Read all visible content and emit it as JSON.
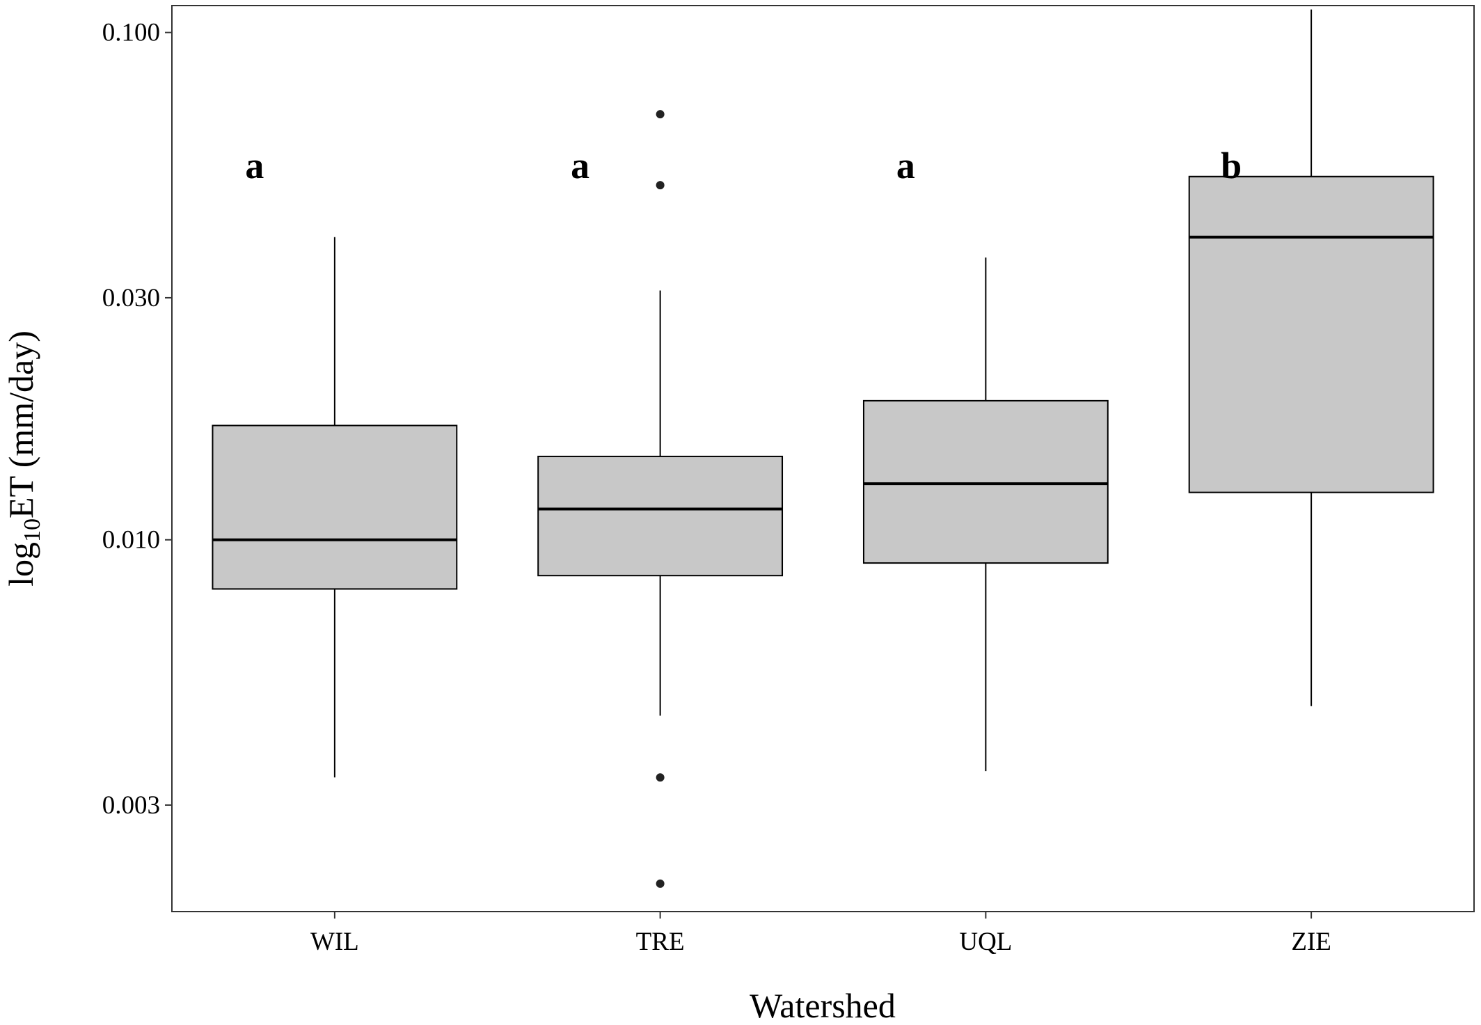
{
  "chart_data": {
    "type": "box",
    "title": "",
    "xlabel": "Watershed",
    "ylabel_parts": {
      "prefix": "log",
      "subscript": "10",
      "suffix": "ET (mm/day)"
    },
    "y_scale": "log10",
    "ylim": [
      0.00185,
      0.113
    ],
    "y_ticks": [
      0.003,
      0.01,
      0.03,
      0.1
    ],
    "y_tick_labels": [
      "0.003",
      "0.010",
      "0.030",
      "0.100"
    ],
    "grid": false,
    "legend": "none",
    "box_fill": "#c8c8c8",
    "line_color": "#000000",
    "categories": [
      "WIL",
      "TRE",
      "UQL",
      "ZIE"
    ],
    "boxes": [
      {
        "category": "WIL",
        "whisker_low": 0.0034,
        "q1": 0.008,
        "median": 0.01,
        "q3": 0.0168,
        "whisker_high": 0.0395,
        "outliers": [],
        "group_letter": "a"
      },
      {
        "category": "TRE",
        "whisker_low": 0.0045,
        "q1": 0.0085,
        "median": 0.0115,
        "q3": 0.0146,
        "whisker_high": 0.031,
        "outliers": [
          0.069,
          0.05,
          0.0034,
          0.0021
        ],
        "group_letter": "a"
      },
      {
        "category": "UQL",
        "whisker_low": 0.0035,
        "q1": 0.009,
        "median": 0.0129,
        "q3": 0.0188,
        "whisker_high": 0.036,
        "outliers": [],
        "group_letter": "a"
      },
      {
        "category": "ZIE",
        "whisker_low": 0.0047,
        "q1": 0.0124,
        "median": 0.0395,
        "q3": 0.052,
        "whisker_high": 0.111,
        "outliers": [],
        "group_letter": "b"
      }
    ]
  }
}
